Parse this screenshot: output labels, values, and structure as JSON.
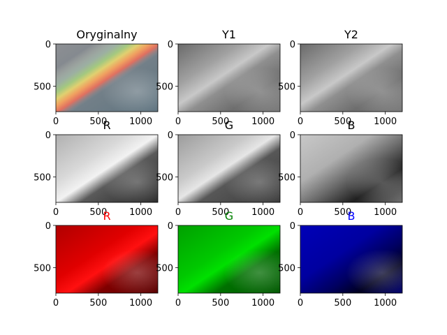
{
  "figure": {
    "background": "#ffffff"
  },
  "chart_data": [
    {
      "type": "heatmap",
      "panel": "original",
      "title": "Oryginalny",
      "title_color": "#000000",
      "colormap": "rgb",
      "xlim": [
        0,
        1200
      ],
      "ylim": [
        800,
        0
      ],
      "xticks": [
        0,
        500,
        1000
      ],
      "yticks": [
        0,
        500
      ]
    },
    {
      "type": "heatmap",
      "panel": "y1",
      "title": "Y1",
      "title_color": "#000000",
      "colormap": "gray",
      "xlim": [
        0,
        1200
      ],
      "ylim": [
        800,
        0
      ],
      "xticks": [
        0,
        500,
        1000
      ],
      "yticks": [
        0,
        500
      ]
    },
    {
      "type": "heatmap",
      "panel": "y2",
      "title": "Y2",
      "title_color": "#000000",
      "colormap": "gray",
      "xlim": [
        0,
        1200
      ],
      "ylim": [
        800,
        0
      ],
      "xticks": [
        0,
        500,
        1000
      ],
      "yticks": [
        0,
        500
      ]
    },
    {
      "type": "heatmap",
      "panel": "r-gray",
      "title": "R",
      "title_color": "#000000",
      "colormap": "gray",
      "xlim": [
        0,
        1200
      ],
      "ylim": [
        800,
        0
      ],
      "xticks": [
        0,
        500,
        1000
      ],
      "yticks": [
        0,
        500
      ]
    },
    {
      "type": "heatmap",
      "panel": "g-gray",
      "title": "G",
      "title_color": "#000000",
      "colormap": "gray",
      "xlim": [
        0,
        1200
      ],
      "ylim": [
        800,
        0
      ],
      "xticks": [
        0,
        500,
        1000
      ],
      "yticks": [
        0,
        500
      ]
    },
    {
      "type": "heatmap",
      "panel": "b-gray",
      "title": "B",
      "title_color": "#000000",
      "colormap": "gray",
      "xlim": [
        0,
        1200
      ],
      "ylim": [
        800,
        0
      ],
      "xticks": [
        0,
        500,
        1000
      ],
      "yticks": [
        0,
        500
      ]
    },
    {
      "type": "heatmap",
      "panel": "r-color",
      "title": "R",
      "title_color": "#ff0000",
      "colormap": "red",
      "xlim": [
        0,
        1200
      ],
      "ylim": [
        800,
        0
      ],
      "xticks": [
        0,
        500,
        1000
      ],
      "yticks": [
        0,
        500
      ]
    },
    {
      "type": "heatmap",
      "panel": "g-color",
      "title": "G",
      "title_color": "#008000",
      "colormap": "green",
      "xlim": [
        0,
        1200
      ],
      "ylim": [
        800,
        0
      ],
      "xticks": [
        0,
        500,
        1000
      ],
      "yticks": [
        0,
        500
      ]
    },
    {
      "type": "heatmap",
      "panel": "b-color",
      "title": "B",
      "title_color": "#0000ff",
      "colormap": "blue",
      "xlim": [
        0,
        1200
      ],
      "ylim": [
        800,
        0
      ],
      "xticks": [
        0,
        500,
        1000
      ],
      "yticks": [
        0,
        500
      ]
    }
  ]
}
